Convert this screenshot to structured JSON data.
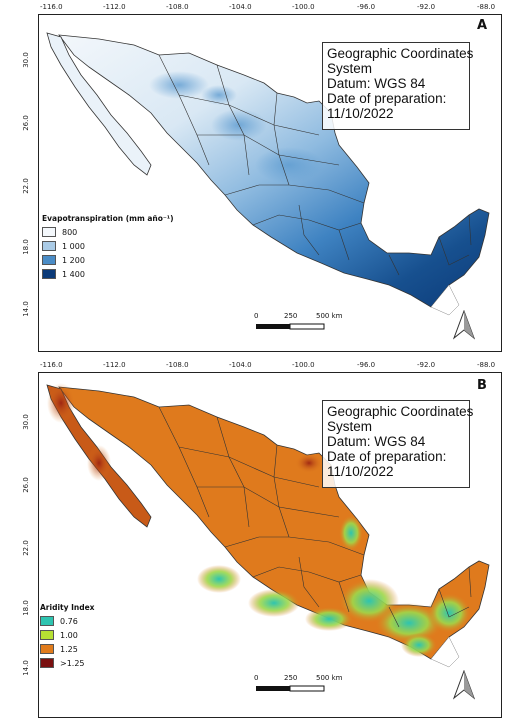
{
  "axes": {
    "x_ticks": [
      "-116.0",
      "-112.0",
      "-108.0",
      "-104.0",
      "-100.0",
      "-96.0",
      "-92.0",
      "-88.0"
    ],
    "y_ticks": [
      "30.0",
      "26.0",
      "22.0",
      "18.0",
      "14.0"
    ]
  },
  "panel_a": {
    "letter": "A",
    "info": [
      "Geographic Coordinates",
      "System",
      "Datum: WGS 84",
      "Date of preparation:",
      "11/10/2022"
    ],
    "legend": {
      "title": "Evapotranspiration (mm año⁻¹)",
      "items": [
        {
          "label": "800",
          "color": "#f4f8fc"
        },
        {
          "label": "1 000",
          "color": "#aacbe6"
        },
        {
          "label": "1 200",
          "color": "#4a8cc6"
        },
        {
          "label": "1 400",
          "color": "#0b3a78"
        }
      ]
    },
    "scale": {
      "labels": [
        "0",
        "250",
        "500 km"
      ]
    }
  },
  "panel_b": {
    "letter": "B",
    "info": [
      "Geographic Coordinates",
      "System",
      "Datum: WGS 84",
      "Date of preparation:",
      "11/10/2022"
    ],
    "legend": {
      "title": "Aridity Index",
      "items": [
        {
          "label": "0.76",
          "color": "#2ec4b0"
        },
        {
          "label": "1.00",
          "color": "#b6e033"
        },
        {
          "label": "1.25",
          "color": "#e07b1c"
        },
        {
          "label": ">1.25",
          "color": "#7a1010"
        }
      ]
    },
    "scale": {
      "labels": [
        "0",
        "250",
        "500 km"
      ]
    }
  },
  "colors": {
    "border": "#222222",
    "state_lines": "#333333"
  }
}
